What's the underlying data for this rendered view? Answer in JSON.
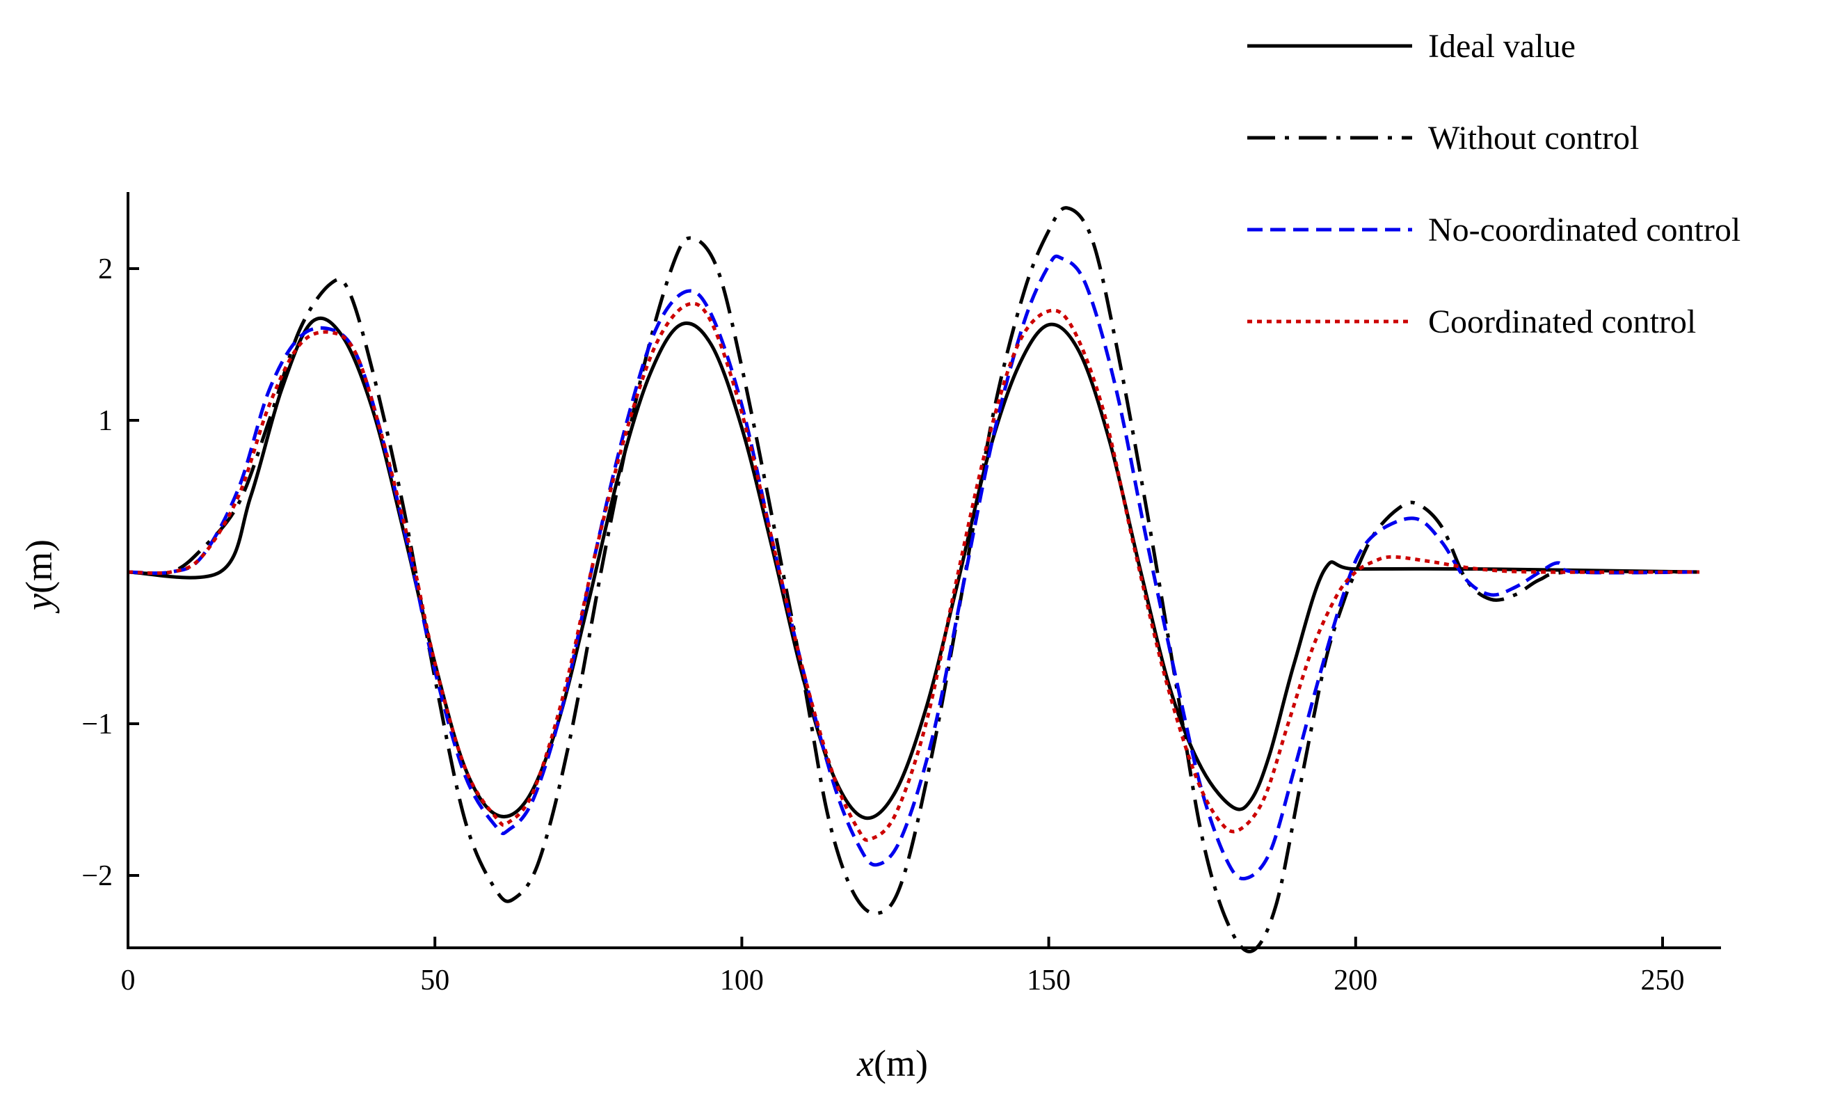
{
  "chart_data": {
    "type": "line",
    "title": "",
    "xlabel": {
      "var": "x",
      "unit": "(m)"
    },
    "ylabel": {
      "var": "y",
      "unit": "(m)"
    },
    "xlim": [
      0,
      260
    ],
    "ylim": [
      -2.5,
      2.5
    ],
    "xticks": [
      0,
      50,
      100,
      150,
      200,
      250
    ],
    "xtick_labels": [
      "0",
      "50",
      "100",
      "150",
      "200",
      "250"
    ],
    "yticks": [
      -2,
      -1,
      1,
      2
    ],
    "ytick_labels": [
      "−2",
      "−1",
      "1",
      "2"
    ],
    "grid": false,
    "legend_position": "top-right",
    "series": [
      {
        "name": "Ideal value",
        "color": "#000000",
        "style": "solid",
        "points": [
          [
            0,
            0
          ],
          [
            15,
            0
          ],
          [
            20,
            0.5
          ],
          [
            25,
            1.2
          ],
          [
            30,
            1.65
          ],
          [
            35,
            1.55
          ],
          [
            40,
            1.05
          ],
          [
            45,
            0.25
          ],
          [
            50,
            -0.6
          ],
          [
            55,
            -1.3
          ],
          [
            60,
            -1.6
          ],
          [
            65,
            -1.5
          ],
          [
            70,
            -1.0
          ],
          [
            75,
            -0.2
          ],
          [
            80,
            0.65
          ],
          [
            85,
            1.3
          ],
          [
            90,
            1.63
          ],
          [
            95,
            1.5
          ],
          [
            100,
            0.95
          ],
          [
            105,
            0.15
          ],
          [
            110,
            -0.7
          ],
          [
            115,
            -1.35
          ],
          [
            120,
            -1.62
          ],
          [
            125,
            -1.45
          ],
          [
            130,
            -0.9
          ],
          [
            135,
            -0.1
          ],
          [
            140,
            0.75
          ],
          [
            145,
            1.35
          ],
          [
            150,
            1.63
          ],
          [
            155,
            1.45
          ],
          [
            160,
            0.85
          ],
          [
            165,
            0.0
          ],
          [
            170,
            -0.8
          ],
          [
            175,
            -1.3
          ],
          [
            180,
            -1.55
          ],
          [
            183,
            -1.5
          ],
          [
            186,
            -1.2
          ],
          [
            190,
            -0.6
          ],
          [
            195,
            0.02
          ],
          [
            200,
            0.02
          ],
          [
            220,
            0.02
          ],
          [
            256,
            0.0
          ]
        ]
      },
      {
        "name": "Without control",
        "color": "#000000",
        "style": "dashdot",
        "points": [
          [
            0,
            0
          ],
          [
            7,
            0
          ],
          [
            12,
            0.15
          ],
          [
            18,
            0.45
          ],
          [
            23,
            1.0
          ],
          [
            28,
            1.6
          ],
          [
            33,
            1.9
          ],
          [
            36,
            1.85
          ],
          [
            40,
            1.3
          ],
          [
            45,
            0.4
          ],
          [
            50,
            -0.7
          ],
          [
            55,
            -1.65
          ],
          [
            60,
            -2.1
          ],
          [
            63,
            -2.15
          ],
          [
            67,
            -1.9
          ],
          [
            72,
            -1.1
          ],
          [
            78,
            0.2
          ],
          [
            84,
            1.35
          ],
          [
            89,
            2.05
          ],
          [
            92,
            2.2
          ],
          [
            96,
            2.0
          ],
          [
            100,
            1.35
          ],
          [
            105,
            0.35
          ],
          [
            110,
            -0.7
          ],
          [
            114,
            -1.6
          ],
          [
            118,
            -2.1
          ],
          [
            122,
            -2.25
          ],
          [
            126,
            -2.05
          ],
          [
            131,
            -1.2
          ],
          [
            136,
            -0.1
          ],
          [
            141,
            1.05
          ],
          [
            146,
            1.85
          ],
          [
            150,
            2.25
          ],
          [
            153,
            2.4
          ],
          [
            157,
            2.2
          ],
          [
            161,
            1.5
          ],
          [
            166,
            0.4
          ],
          [
            171,
            -0.8
          ],
          [
            175,
            -1.75
          ],
          [
            179,
            -2.3
          ],
          [
            183,
            -2.5
          ],
          [
            187,
            -2.2
          ],
          [
            191,
            -1.4
          ],
          [
            195,
            -0.6
          ],
          [
            198,
            -0.2
          ],
          [
            200,
            0.0
          ],
          [
            203,
            0.25
          ],
          [
            207,
            0.42
          ],
          [
            210,
            0.45
          ],
          [
            214,
            0.3
          ],
          [
            218,
            -0.05
          ],
          [
            222,
            -0.18
          ],
          [
            226,
            -0.15
          ],
          [
            230,
            -0.05
          ],
          [
            235,
            0.0
          ],
          [
            256,
            0.0
          ]
        ]
      },
      {
        "name": "No-coordinated control",
        "color": "#0000ee",
        "style": "dashed",
        "points": [
          [
            0,
            0
          ],
          [
            7,
            0
          ],
          [
            12,
            0.1
          ],
          [
            18,
            0.55
          ],
          [
            23,
            1.2
          ],
          [
            28,
            1.55
          ],
          [
            33,
            1.6
          ],
          [
            37,
            1.45
          ],
          [
            41,
            0.95
          ],
          [
            46,
            0.1
          ],
          [
            50,
            -0.65
          ],
          [
            55,
            -1.35
          ],
          [
            60,
            -1.68
          ],
          [
            62,
            -1.7
          ],
          [
            66,
            -1.5
          ],
          [
            71,
            -0.85
          ],
          [
            76,
            0.1
          ],
          [
            81,
            0.95
          ],
          [
            86,
            1.6
          ],
          [
            91,
            1.85
          ],
          [
            95,
            1.7
          ],
          [
            100,
            1.1
          ],
          [
            105,
            0.2
          ],
          [
            110,
            -0.65
          ],
          [
            115,
            -1.4
          ],
          [
            119,
            -1.8
          ],
          [
            122,
            -1.93
          ],
          [
            126,
            -1.75
          ],
          [
            131,
            -1.1
          ],
          [
            136,
            -0.1
          ],
          [
            141,
            0.9
          ],
          [
            146,
            1.65
          ],
          [
            150,
            2.02
          ],
          [
            152,
            2.07
          ],
          [
            156,
            1.9
          ],
          [
            161,
            1.2
          ],
          [
            166,
            0.2
          ],
          [
            171,
            -0.75
          ],
          [
            175,
            -1.45
          ],
          [
            179,
            -1.9
          ],
          [
            182,
            -2.02
          ],
          [
            186,
            -1.85
          ],
          [
            190,
            -1.3
          ],
          [
            194,
            -0.7
          ],
          [
            198,
            -0.15
          ],
          [
            201,
            0.15
          ],
          [
            205,
            0.3
          ],
          [
            210,
            0.35
          ],
          [
            214,
            0.2
          ],
          [
            218,
            -0.05
          ],
          [
            222,
            -0.15
          ],
          [
            226,
            -0.1
          ],
          [
            230,
            0.0
          ],
          [
            233,
            0.06
          ],
          [
            236,
            0.0
          ],
          [
            256,
            0.0
          ]
        ]
      },
      {
        "name": "Coordinated control",
        "color": "#cc0000",
        "style": "dotted",
        "points": [
          [
            0,
            0
          ],
          [
            7,
            0
          ],
          [
            12,
            0.1
          ],
          [
            18,
            0.5
          ],
          [
            23,
            1.1
          ],
          [
            28,
            1.5
          ],
          [
            33,
            1.58
          ],
          [
            37,
            1.45
          ],
          [
            41,
            0.95
          ],
          [
            46,
            0.15
          ],
          [
            50,
            -0.6
          ],
          [
            55,
            -1.3
          ],
          [
            60,
            -1.62
          ],
          [
            62,
            -1.65
          ],
          [
            66,
            -1.45
          ],
          [
            71,
            -0.8
          ],
          [
            76,
            0.1
          ],
          [
            81,
            0.9
          ],
          [
            86,
            1.5
          ],
          [
            91,
            1.76
          ],
          [
            95,
            1.65
          ],
          [
            100,
            1.05
          ],
          [
            105,
            0.2
          ],
          [
            110,
            -0.65
          ],
          [
            115,
            -1.35
          ],
          [
            119,
            -1.7
          ],
          [
            121,
            -1.76
          ],
          [
            125,
            -1.6
          ],
          [
            130,
            -1.0
          ],
          [
            135,
            -0.05
          ],
          [
            140,
            0.85
          ],
          [
            145,
            1.5
          ],
          [
            150,
            1.72
          ],
          [
            154,
            1.6
          ],
          [
            159,
            1.05
          ],
          [
            164,
            0.15
          ],
          [
            169,
            -0.7
          ],
          [
            174,
            -1.35
          ],
          [
            178,
            -1.65
          ],
          [
            181,
            -1.7
          ],
          [
            185,
            -1.5
          ],
          [
            189,
            -1.0
          ],
          [
            193,
            -0.5
          ],
          [
            197,
            -0.15
          ],
          [
            200,
            0.0
          ],
          [
            203,
            0.07
          ],
          [
            206,
            0.1
          ],
          [
            212,
            0.07
          ],
          [
            220,
            0.02
          ],
          [
            230,
            0.0
          ],
          [
            256,
            0.0
          ]
        ]
      }
    ]
  }
}
